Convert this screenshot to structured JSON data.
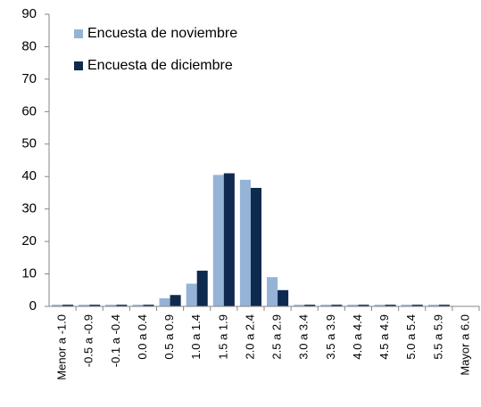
{
  "chart_data": {
    "type": "bar",
    "categories": [
      "Menor a -1.0",
      "-0.5 a -0.9",
      "-0.1 a -0.4",
      "0.0 a 0.4",
      "0.5 a 0.9",
      "1.0 a 1.4",
      "1.5 a 1.9",
      "2.0 a 2.4",
      "2.5 a 2.9",
      "3.0 a 3.4",
      "3.5 a 3.9",
      "4.0 a 4.4",
      "4.5 a 4.9",
      "5.0 a 5.4",
      "5.5 a 5.9",
      "Mayor a 6.0"
    ],
    "series": [
      {
        "name": "Encuesta de noviembre",
        "color": "#95b3d7",
        "values": [
          0.5,
          0.5,
          0.5,
          0.5,
          2.5,
          7,
          40.5,
          39,
          9,
          0.5,
          0.5,
          0.5,
          0.5,
          0.5,
          0.5,
          0
        ]
      },
      {
        "name": "Encuesta de diciembre",
        "color": "#0f2a4f",
        "values": [
          0.5,
          0.5,
          0.5,
          0.5,
          3.5,
          11,
          41,
          36.5,
          5,
          0.5,
          0.5,
          0.5,
          0.5,
          0.5,
          0.5,
          0
        ]
      }
    ],
    "ylim": [
      0,
      90
    ],
    "yticks": [
      0,
      10,
      20,
      30,
      40,
      50,
      60,
      70,
      80,
      90
    ],
    "grid": false,
    "legend": "upper-left"
  }
}
